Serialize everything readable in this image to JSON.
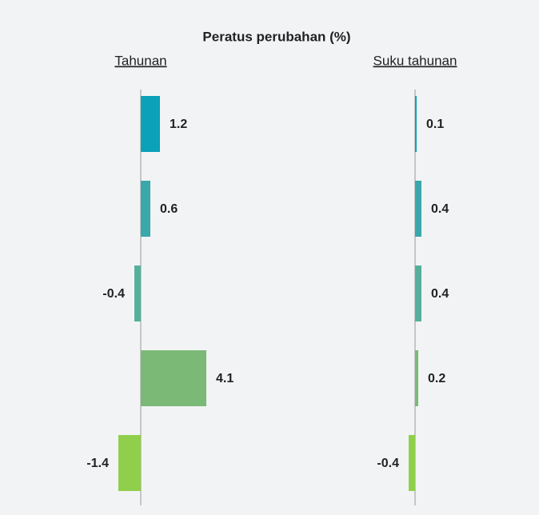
{
  "chart_data": [
    {
      "type": "bar",
      "orientation": "horizontal",
      "title": "Peratus perubahan (%)",
      "subtitle": "Tahunan",
      "categories": [
        null,
        null,
        null,
        null,
        null
      ],
      "values": [
        1.2,
        0.6,
        -0.4,
        4.1,
        -1.4
      ],
      "colors": [
        "#0aa1b9",
        "#3aa7ab",
        "#55b09b",
        "#7aba76",
        "#8fcf4b"
      ]
    },
    {
      "type": "bar",
      "orientation": "horizontal",
      "subtitle": "Suku tahunan",
      "categories": [
        null,
        null,
        null,
        null,
        null
      ],
      "values": [
        0.1,
        0.4,
        0.4,
        0.2,
        -0.4
      ],
      "colors": [
        "#0aa1b9",
        "#3aa7ab",
        "#55b09b",
        "#7aba76",
        "#8fcf4b"
      ]
    }
  ]
}
